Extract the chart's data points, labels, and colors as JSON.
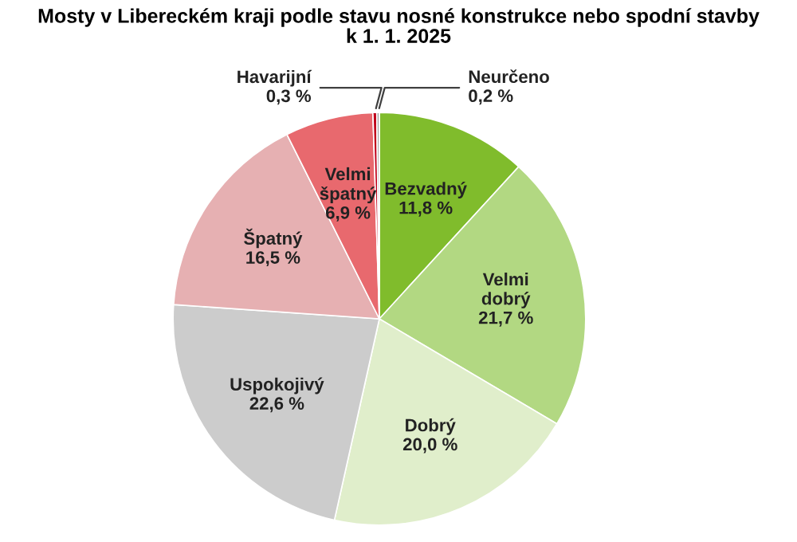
{
  "chart_data": {
    "type": "pie",
    "title": "Mosty v Libereckém kraji podle stavu nosné konstrukce nebo spodní stavby\nk 1. 1. 2025",
    "categories": [
      "Bezvadný",
      "Velmi\ndobrý",
      "Dobrý",
      "Uspokojivý",
      "Špatný",
      "Velmi\nšpatný",
      "Havarijní",
      "Neurčeno"
    ],
    "values": [
      11.8,
      21.7,
      20.0,
      22.6,
      16.5,
      6.9,
      0.3,
      0.2
    ],
    "colors": [
      "#80bc2c",
      "#b2d882",
      "#e0eecb",
      "#cccccc",
      "#e6b0b2",
      "#e8696e",
      "#c0001a",
      "#a6a6a6"
    ],
    "value_labels": [
      "11,8 %",
      "21,7 %",
      "20,0 %",
      "22,6 %",
      "16,5 %",
      "6,9 %",
      "0,3 %",
      "0,2 %"
    ]
  }
}
